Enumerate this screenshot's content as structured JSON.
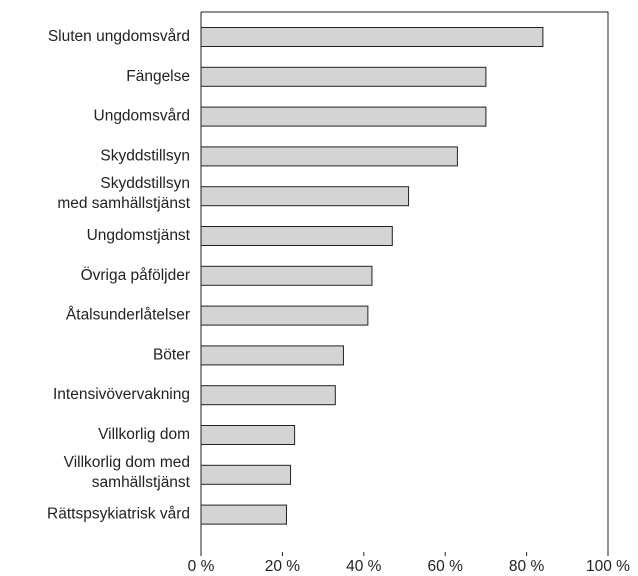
{
  "chart_data": {
    "type": "barh",
    "categories": [
      "Sluten ungdomsvård",
      "Fängelse",
      "Ungdomsvård",
      "Skyddstillsyn",
      "Skyddstillsyn\nmed samhällstjänst",
      "Ungdomstjänst",
      "Övriga påföljder",
      "Åtalsunderlåtelser",
      "Böter",
      "Intensivövervakning",
      "Villkorlig dom",
      "Villkorlig dom med\nsamhällstjänst",
      "Rättspsykiatrisk vård"
    ],
    "values": [
      84,
      70,
      70,
      63,
      51,
      47,
      42,
      41,
      35,
      33,
      23,
      22,
      21
    ],
    "color": "#d4d4d4",
    "xlim": [
      0,
      100
    ],
    "xticks": [
      {
        "value": 0,
        "label": "0 %"
      },
      {
        "value": 20,
        "label": "20 %"
      },
      {
        "value": 40,
        "label": "40 %"
      },
      {
        "value": 60,
        "label": "60 %"
      },
      {
        "value": 80,
        "label": "80 %"
      },
      {
        "value": 100,
        "label": "100 %"
      }
    ]
  }
}
